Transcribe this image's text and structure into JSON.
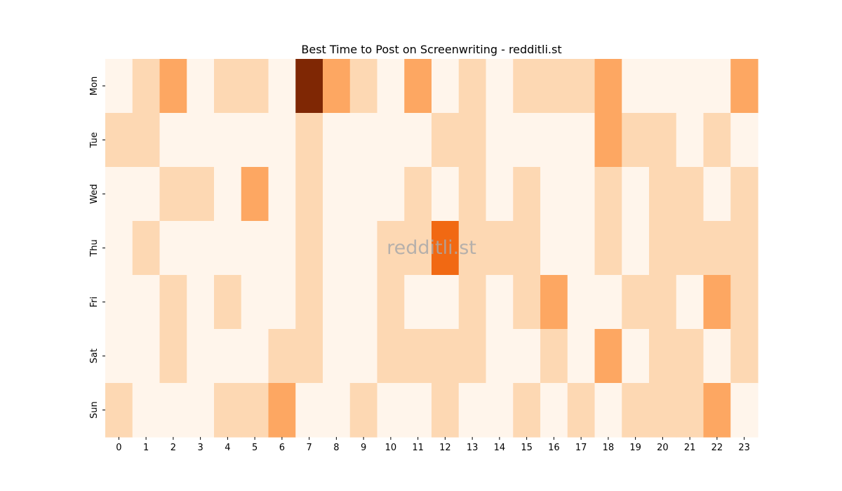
{
  "chart_data": {
    "type": "heatmap",
    "title": "Best Time to Post on Screenwriting - redditli.st",
    "watermark": "redditli.st",
    "x_categories": [
      "0",
      "1",
      "2",
      "3",
      "4",
      "5",
      "6",
      "7",
      "8",
      "9",
      "10",
      "11",
      "12",
      "13",
      "14",
      "15",
      "16",
      "17",
      "18",
      "19",
      "20",
      "21",
      "22",
      "23"
    ],
    "y_categories": [
      "Mon",
      "Tue",
      "Wed",
      "Thu",
      "Fri",
      "Sat",
      "Sun"
    ],
    "values": [
      [
        0,
        1,
        2,
        0,
        1,
        1,
        0,
        5,
        2,
        1,
        0,
        2,
        0,
        1,
        0,
        1,
        1,
        1,
        2,
        0,
        0,
        0,
        0,
        2
      ],
      [
        1,
        1,
        0,
        0,
        0,
        0,
        0,
        1,
        0,
        0,
        0,
        0,
        1,
        1,
        0,
        0,
        0,
        0,
        2,
        1,
        1,
        0,
        1,
        0
      ],
      [
        0,
        0,
        1,
        1,
        0,
        2,
        0,
        1,
        0,
        0,
        0,
        1,
        0,
        1,
        0,
        1,
        0,
        0,
        1,
        0,
        1,
        1,
        0,
        1
      ],
      [
        0,
        1,
        0,
        0,
        0,
        0,
        0,
        1,
        0,
        0,
        1,
        1,
        3,
        1,
        1,
        1,
        0,
        0,
        1,
        0,
        1,
        1,
        1,
        1
      ],
      [
        0,
        0,
        1,
        0,
        1,
        0,
        0,
        1,
        0,
        0,
        1,
        0,
        0,
        1,
        0,
        1,
        2,
        0,
        0,
        1,
        1,
        0,
        2,
        1
      ],
      [
        0,
        0,
        1,
        0,
        0,
        0,
        1,
        1,
        0,
        0,
        1,
        1,
        1,
        1,
        0,
        0,
        1,
        0,
        2,
        0,
        1,
        1,
        0,
        1
      ],
      [
        1,
        0,
        0,
        0,
        1,
        1,
        2,
        0,
        0,
        1,
        0,
        0,
        1,
        0,
        0,
        1,
        0,
        1,
        0,
        1,
        1,
        1,
        2,
        0
      ]
    ],
    "color_scale": [
      "#fff5eb",
      "#fdd8b3",
      "#fda762",
      "#f16913",
      "#d94801",
      "#7f2704"
    ],
    "colorbar": false,
    "grid": false
  }
}
